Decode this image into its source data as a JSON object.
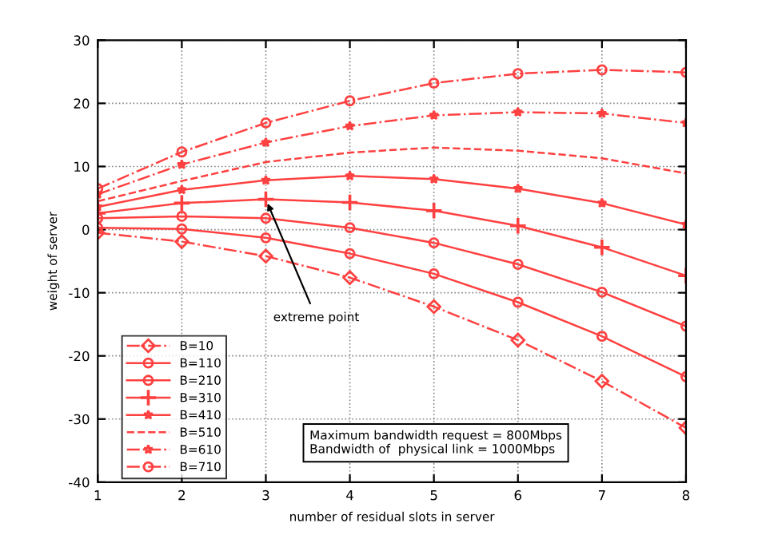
{
  "chart_data": {
    "type": "line",
    "xlabel": "number of residual slots in server",
    "ylabel": "weight of server",
    "x": [
      1,
      2,
      3,
      4,
      5,
      6,
      7,
      8
    ],
    "series": [
      {
        "name": "B=10",
        "color": "#ff4040",
        "marker": "diamond",
        "line_style": "dashdot",
        "values": [
          -0.5,
          -1.9,
          -4.2,
          -7.6,
          -12.2,
          -17.5,
          -24.0,
          -31.4
        ]
      },
      {
        "name": "B=110",
        "color": "#ff4040",
        "marker": "circle",
        "line_style": "solid",
        "values": [
          0.3,
          0.1,
          -1.3,
          -3.8,
          -7.0,
          -11.5,
          -16.9,
          -23.3
        ]
      },
      {
        "name": "B=210",
        "color": "#ff4040",
        "marker": "circle",
        "line_style": "solid",
        "values": [
          1.8,
          2.1,
          1.8,
          0.3,
          -2.1,
          -5.5,
          -9.9,
          -15.3
        ]
      },
      {
        "name": "B=310",
        "color": "#ff4040",
        "marker": "plus",
        "line_style": "solid",
        "values": [
          2.6,
          4.2,
          4.8,
          4.3,
          3.0,
          0.6,
          -2.8,
          -7.3
        ]
      },
      {
        "name": "B=410",
        "color": "#ff4040",
        "marker": "star",
        "line_style": "solid",
        "values": [
          3.6,
          6.3,
          7.8,
          8.5,
          8.0,
          6.5,
          4.2,
          0.8
        ]
      },
      {
        "name": "B=510",
        "color": "#ff4040",
        "marker": "none",
        "line_style": "dashed",
        "values": [
          4.5,
          7.7,
          10.7,
          12.2,
          13.0,
          12.5,
          11.3,
          8.9
        ]
      },
      {
        "name": "B=610",
        "color": "#ff4040",
        "marker": "star",
        "line_style": "dashdot",
        "values": [
          5.6,
          10.3,
          13.8,
          16.4,
          18.1,
          18.6,
          18.4,
          16.9
        ]
      },
      {
        "name": "B=710",
        "color": "#ff4040",
        "marker": "circle",
        "line_style": "dashdot",
        "values": [
          6.5,
          12.3,
          16.9,
          20.4,
          23.2,
          24.7,
          25.3,
          24.9
        ]
      }
    ],
    "xlim": [
      1,
      8
    ],
    "ylim": [
      -40,
      30
    ],
    "xticks": [
      1,
      2,
      3,
      4,
      5,
      6,
      7,
      8
    ],
    "yticks": [
      -40,
      -30,
      -20,
      -10,
      0,
      10,
      20,
      30
    ],
    "grid": true,
    "legend": "bottom left",
    "annotations": [
      {
        "text": "extreme point",
        "x": 3,
        "y": 4.8
      },
      "Maximum bandwidth request = 800Mbps\nBandwidth of  physical link = 1000Mbps"
    ]
  }
}
